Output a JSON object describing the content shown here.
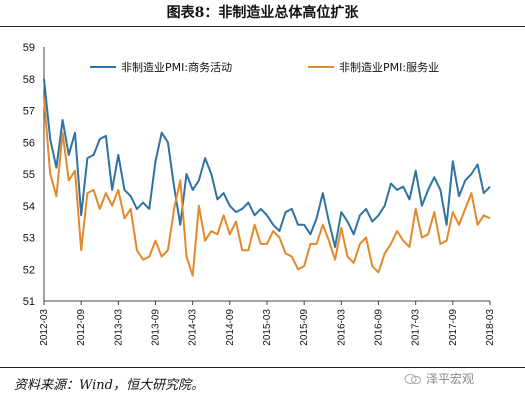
{
  "figure": {
    "title": "图表8：非制造业总体高位扩张",
    "source": "资料来源：Wind，恒大研究院。",
    "watermark": "泽平宏观"
  },
  "chart_data": {
    "type": "line",
    "title": "图表8：非制造业总体高位扩张",
    "xlabel": "",
    "ylabel": "",
    "ylim": [
      51,
      59
    ],
    "yticks": [
      51,
      52,
      53,
      54,
      55,
      56,
      57,
      58,
      59
    ],
    "xtick_labels": [
      "2012-03",
      "2012-09",
      "2013-03",
      "2013-09",
      "2014-03",
      "2014-09",
      "2015-03",
      "2015-09",
      "2016-03",
      "2016-09",
      "2017-03",
      "2017-09",
      "2018-03"
    ],
    "grid": false,
    "legend_position": "top",
    "x": [
      "2012-03",
      "2012-04",
      "2012-05",
      "2012-06",
      "2012-07",
      "2012-08",
      "2012-09",
      "2012-10",
      "2012-11",
      "2012-12",
      "2013-01",
      "2013-02",
      "2013-03",
      "2013-04",
      "2013-05",
      "2013-06",
      "2013-07",
      "2013-08",
      "2013-09",
      "2013-10",
      "2013-11",
      "2013-12",
      "2014-01",
      "2014-02",
      "2014-03",
      "2014-04",
      "2014-05",
      "2014-06",
      "2014-07",
      "2014-08",
      "2014-09",
      "2014-10",
      "2014-11",
      "2014-12",
      "2015-01",
      "2015-02",
      "2015-03",
      "2015-04",
      "2015-05",
      "2015-06",
      "2015-07",
      "2015-08",
      "2015-09",
      "2015-10",
      "2015-11",
      "2015-12",
      "2016-01",
      "2016-02",
      "2016-03",
      "2016-04",
      "2016-05",
      "2016-06",
      "2016-07",
      "2016-08",
      "2016-09",
      "2016-10",
      "2016-11",
      "2016-12",
      "2017-01",
      "2017-02",
      "2017-03",
      "2017-04",
      "2017-05",
      "2017-06",
      "2017-07",
      "2017-08",
      "2017-09",
      "2017-10",
      "2017-11",
      "2017-12",
      "2018-01",
      "2018-02",
      "2018-03"
    ],
    "series": [
      {
        "name": "非制造业PMI:商务活动",
        "color": "#2E74A3",
        "values": [
          58.0,
          56.1,
          55.2,
          56.7,
          55.6,
          56.3,
          53.7,
          55.5,
          55.6,
          56.1,
          56.2,
          54.5,
          55.6,
          54.5,
          54.3,
          53.9,
          54.1,
          53.9,
          55.4,
          56.3,
          56.0,
          54.6,
          53.4,
          55.0,
          54.5,
          54.8,
          55.5,
          55.0,
          54.2,
          54.4,
          54.0,
          53.8,
          53.9,
          54.1,
          53.7,
          53.9,
          53.7,
          53.4,
          53.2,
          53.8,
          53.9,
          53.4,
          53.4,
          53.1,
          53.6,
          54.4,
          53.5,
          52.7,
          53.8,
          53.5,
          53.1,
          53.7,
          53.9,
          53.5,
          53.7,
          54.0,
          54.7,
          54.5,
          54.6,
          54.2,
          55.1,
          54.0,
          54.5,
          54.9,
          54.5,
          53.4,
          55.4,
          54.3,
          54.8,
          55.0,
          55.3,
          54.4,
          54.6
        ]
      },
      {
        "name": "非制造业PMI:服务业",
        "color": "#E2892B",
        "values": [
          57.4,
          55.0,
          54.3,
          56.3,
          54.8,
          55.1,
          52.6,
          54.4,
          54.5,
          53.9,
          54.4,
          54.0,
          54.5,
          53.6,
          53.9,
          52.6,
          52.3,
          52.4,
          52.9,
          52.4,
          52.6,
          53.9,
          54.8,
          52.4,
          51.8,
          54.0,
          52.9,
          53.2,
          53.1,
          53.7,
          53.1,
          53.5,
          52.6,
          52.6,
          53.4,
          52.8,
          52.8,
          53.2,
          53.0,
          52.5,
          52.4,
          52.0,
          52.1,
          52.8,
          52.8,
          53.4,
          52.9,
          52.3,
          53.3,
          52.4,
          52.2,
          52.8,
          53.0,
          52.1,
          51.9,
          52.5,
          52.8,
          53.2,
          52.9,
          52.7,
          53.9,
          53.0,
          53.1,
          53.8,
          52.8,
          52.9,
          53.8,
          53.4,
          53.9,
          54.4,
          53.4,
          53.7,
          53.6
        ]
      }
    ]
  }
}
